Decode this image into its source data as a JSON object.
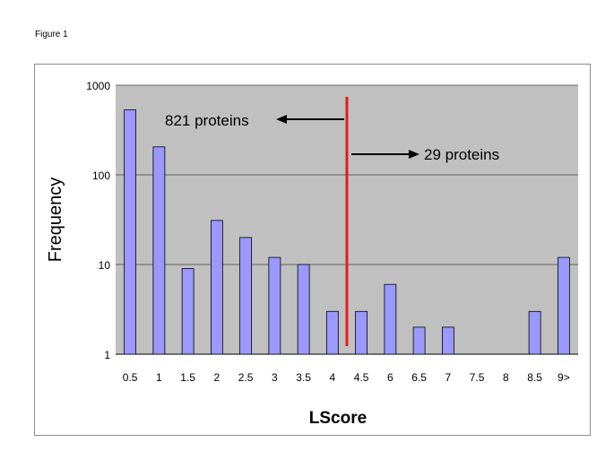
{
  "figure_label": "Figure 1",
  "chart_data": {
    "type": "bar",
    "xlabel": "LScore",
    "ylabel": "Frequency",
    "y_scale": "log",
    "ylim": [
      1,
      1000
    ],
    "y_ticks": [
      1,
      10,
      100,
      1000
    ],
    "y_tick_labels": [
      "1",
      "10",
      "100",
      "1000"
    ],
    "grid": true,
    "categories": [
      "0.5",
      "1",
      "1.5",
      "2",
      "2.5",
      "3",
      "3.5",
      "4",
      "4.5",
      "6",
      "6.5",
      "7",
      "7.5",
      "8",
      "8.5",
      "9>"
    ],
    "values": [
      530,
      205,
      9,
      31,
      20,
      12,
      10,
      3,
      3,
      6,
      2,
      2,
      0,
      0,
      3,
      12
    ],
    "colors": {
      "plot_background": "#c0c0c0",
      "bar_fill": "#9999ff",
      "bar_stroke": "#000000",
      "threshold_line": "#e31b1b"
    },
    "annotations": {
      "left_text": "821 proteins",
      "right_text": "29 proteins",
      "threshold_between": [
        "4",
        "4.5"
      ]
    }
  }
}
